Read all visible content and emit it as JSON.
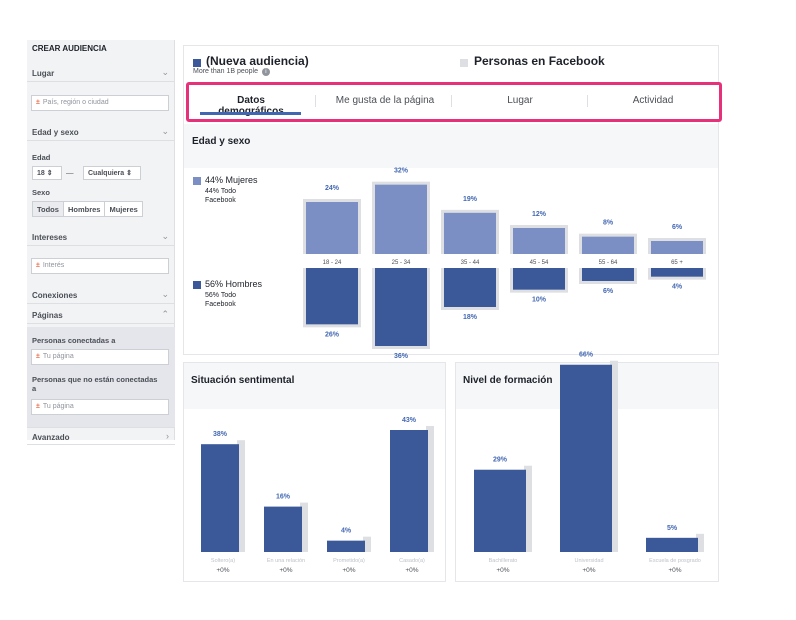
{
  "sidebar": {
    "title": "CREAR AUDIENCIA",
    "lugar": "Lugar",
    "lugar_placeholder": "País, región o ciudad",
    "edad_sexo": "Edad y sexo",
    "edad": "Edad",
    "edad_min": "18 ⇕",
    "edad_dash": "—",
    "edad_max": "Cualquiera ⇕",
    "sexo": "Sexo",
    "sexo_options": [
      "Todos",
      "Hombres",
      "Mujeres"
    ],
    "intereses": "Intereses",
    "interes_placeholder": "Interés",
    "conexiones": "Conexiones",
    "paginas": "Páginas",
    "conectadas": "Personas conectadas a",
    "tu_pagina_1": "Tu página",
    "no_conectadas": "Personas que no están conectadas a",
    "tu_pagina_2": "Tu página",
    "avanzado": "Avanzado"
  },
  "header": {
    "audience_title": "(Nueva audiencia)",
    "audience_sub": "More than 1B people",
    "facebook_title": "Personas en Facebook",
    "colors": {
      "audience": "#3b5998",
      "facebook": "#dddfe2"
    }
  },
  "tabs": [
    "Datos demográficos",
    "Me gusta de la página",
    "Lugar",
    "Actividad"
  ],
  "age_gender": {
    "title": "Edad y sexo",
    "women_label": "44% Mujeres",
    "women_sub1": "44% Todo",
    "women_sub2": "Facebook",
    "men_label": "56% Hombres",
    "men_sub1": "56% Todo",
    "men_sub2": "Facebook"
  },
  "relationship_title": "Situación sentimental",
  "education_title": "Nivel de formación",
  "chart_data": [
    {
      "type": "bar",
      "categories": [
        "18 - 24",
        "25 - 34",
        "35 - 44",
        "45 - 54",
        "55 - 64",
        "65 +"
      ],
      "series": [
        {
          "name": "44% Mujeres",
          "values": [
            24,
            32,
            19,
            12,
            8,
            6
          ],
          "labels": [
            "24%",
            "32%",
            "19%",
            "12%",
            "8%",
            "6%"
          ],
          "color": "#7b8fc4"
        },
        {
          "name": "56% Hombres",
          "values": [
            26,
            36,
            18,
            10,
            6,
            4
          ],
          "labels": [
            "26%",
            "36%",
            "18%",
            "10%",
            "6%",
            "4%"
          ],
          "color": "#3b5998"
        }
      ]
    },
    {
      "type": "bar",
      "categories": [
        "Soltero(a)",
        "En una relación",
        "Prometido(a)",
        "Casado(a)"
      ],
      "values": [
        38,
        16,
        4,
        43
      ],
      "labels": [
        "38%",
        "16%",
        "4%",
        "43%"
      ],
      "deltas": [
        "+0%",
        "+0%",
        "+0%",
        "+0%"
      ]
    },
    {
      "type": "bar",
      "categories": [
        "Bachillerato",
        "Universidad",
        "Escuela de posgrado"
      ],
      "values": [
        29,
        66,
        5
      ],
      "labels": [
        "29%",
        "66%",
        "5%"
      ],
      "deltas": [
        "+0%",
        "+0%",
        "+0%"
      ]
    }
  ]
}
